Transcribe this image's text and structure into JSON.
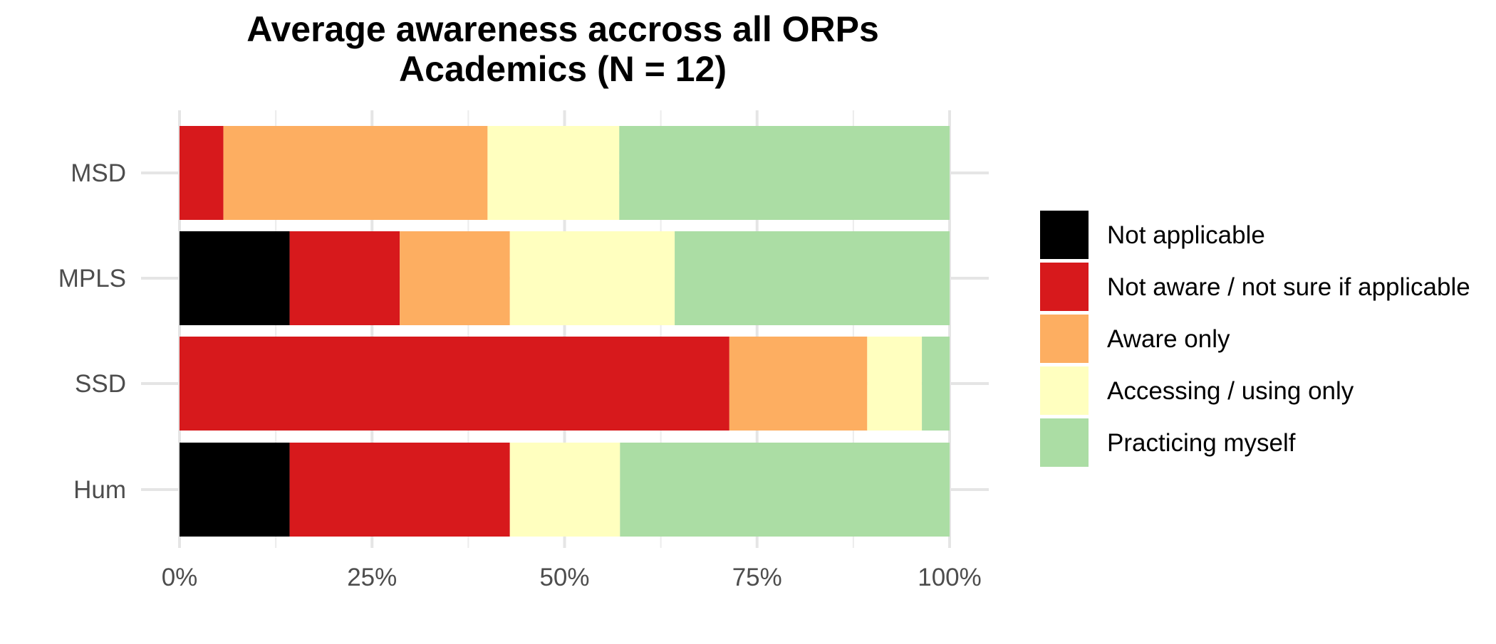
{
  "chart_data": {
    "type": "bar",
    "orientation": "horizontal",
    "stacked": true,
    "title": "Average awareness accross all ORPs",
    "subtitle": "Academics (N = 12)",
    "xlabel": "",
    "ylabel": "",
    "xlim": [
      0,
      1
    ],
    "x_ticks": [
      "0%",
      "25%",
      "50%",
      "75%",
      "100%"
    ],
    "x_tick_values": [
      0,
      0.25,
      0.5,
      0.75,
      1.0
    ],
    "grid": true,
    "legend_position": "right",
    "categories": [
      "MSD",
      "MPLS",
      "SSD",
      "Hum"
    ],
    "series": [
      {
        "name": "Not applicable",
        "color": "#000000",
        "values": [
          0.0,
          0.143,
          0.0,
          0.143
        ]
      },
      {
        "name": "Not aware / not sure if applicable",
        "color": "#D7191C",
        "values": [
          0.057,
          0.143,
          0.714,
          0.286
        ]
      },
      {
        "name": "Aware only",
        "color": "#FDAE61",
        "values": [
          0.343,
          0.143,
          0.179,
          0.0
        ]
      },
      {
        "name": "Accessing / using only",
        "color": "#FFFFBF",
        "values": [
          0.171,
          0.214,
          0.071,
          0.143
        ]
      },
      {
        "name": "Practicing myself",
        "color": "#ABDDA4",
        "values": [
          0.429,
          0.357,
          0.036,
          0.428
        ]
      }
    ]
  }
}
